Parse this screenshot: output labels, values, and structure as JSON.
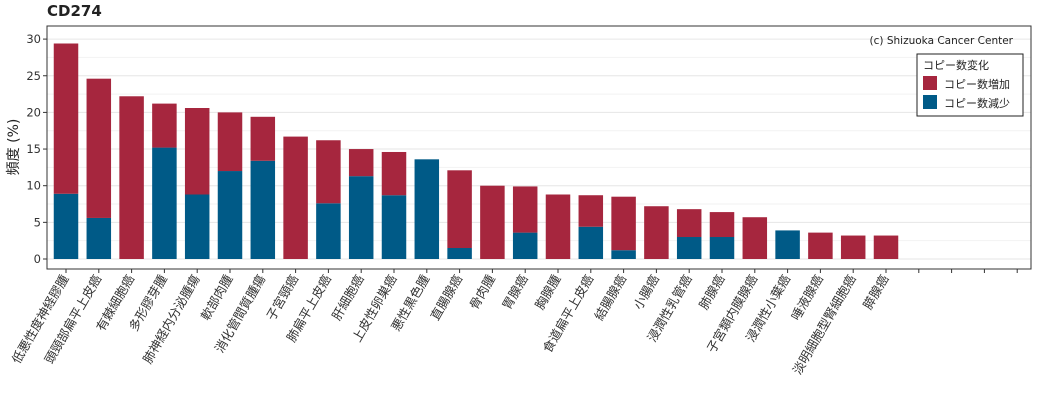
{
  "chart_data": {
    "type": "bar",
    "title": "CD274",
    "ylabel": "頻度 (%)",
    "xlabel": "",
    "ylim": [
      0,
      31
    ],
    "yticks": [
      0,
      5,
      10,
      15,
      20,
      25,
      30
    ],
    "grid": true,
    "stacked": true,
    "annotation": "(c) Shizuoka Cancer Center",
    "legend": {
      "title": "コピー数変化",
      "position": "top-right",
      "items": [
        {
          "name": "コピー数増加",
          "color": "#a6263e"
        },
        {
          "name": "コピー数減少",
          "color": "#005a87"
        }
      ]
    },
    "categories": [
      "低悪性度神経膠腫",
      "頭頸部扁平上皮癌",
      "有棘細胞癌",
      "多形膠芽腫",
      "肺神経内分泌腫瘍",
      "軟部肉腫",
      "消化管間質腫瘍",
      "子宮頸癌",
      "肺扁平上皮癌",
      "肝細胞癌",
      "上皮性卵巣癌",
      "悪性黒色腫",
      "直腸腺癌",
      "骨肉腫",
      "胃腺癌",
      "胸腺腫",
      "食道扁平上皮癌",
      "結腸腺癌",
      "小腸癌",
      "浸潤性乳管癌",
      "肺腺癌",
      "子宮類内膜腺癌",
      "浸潤性小葉癌",
      "唾液腺癌",
      "淡明細胞型腎細胞癌",
      "膵腺癌",
      "",
      "",
      "",
      ""
    ],
    "series": [
      {
        "name": "コピー数増加",
        "color": "#a6263e",
        "values": [
          20.5,
          19.0,
          22.2,
          6.0,
          11.8,
          8.0,
          6.0,
          16.7,
          8.6,
          3.7,
          5.9,
          0,
          10.6,
          10.0,
          6.3,
          8.8,
          4.3,
          7.3,
          7.2,
          3.8,
          3.4,
          5.7,
          0,
          3.6,
          3.2,
          3.2,
          0,
          0,
          0,
          0
        ]
      },
      {
        "name": "コピー数減少",
        "color": "#005a87",
        "values": [
          8.9,
          5.6,
          0,
          15.2,
          8.8,
          12.0,
          13.4,
          0,
          7.6,
          11.3,
          8.7,
          13.6,
          1.5,
          0,
          3.6,
          0,
          4.4,
          1.2,
          0,
          3.0,
          3.0,
          0,
          3.9,
          0,
          0,
          0,
          0,
          0,
          0,
          0
        ]
      }
    ]
  }
}
